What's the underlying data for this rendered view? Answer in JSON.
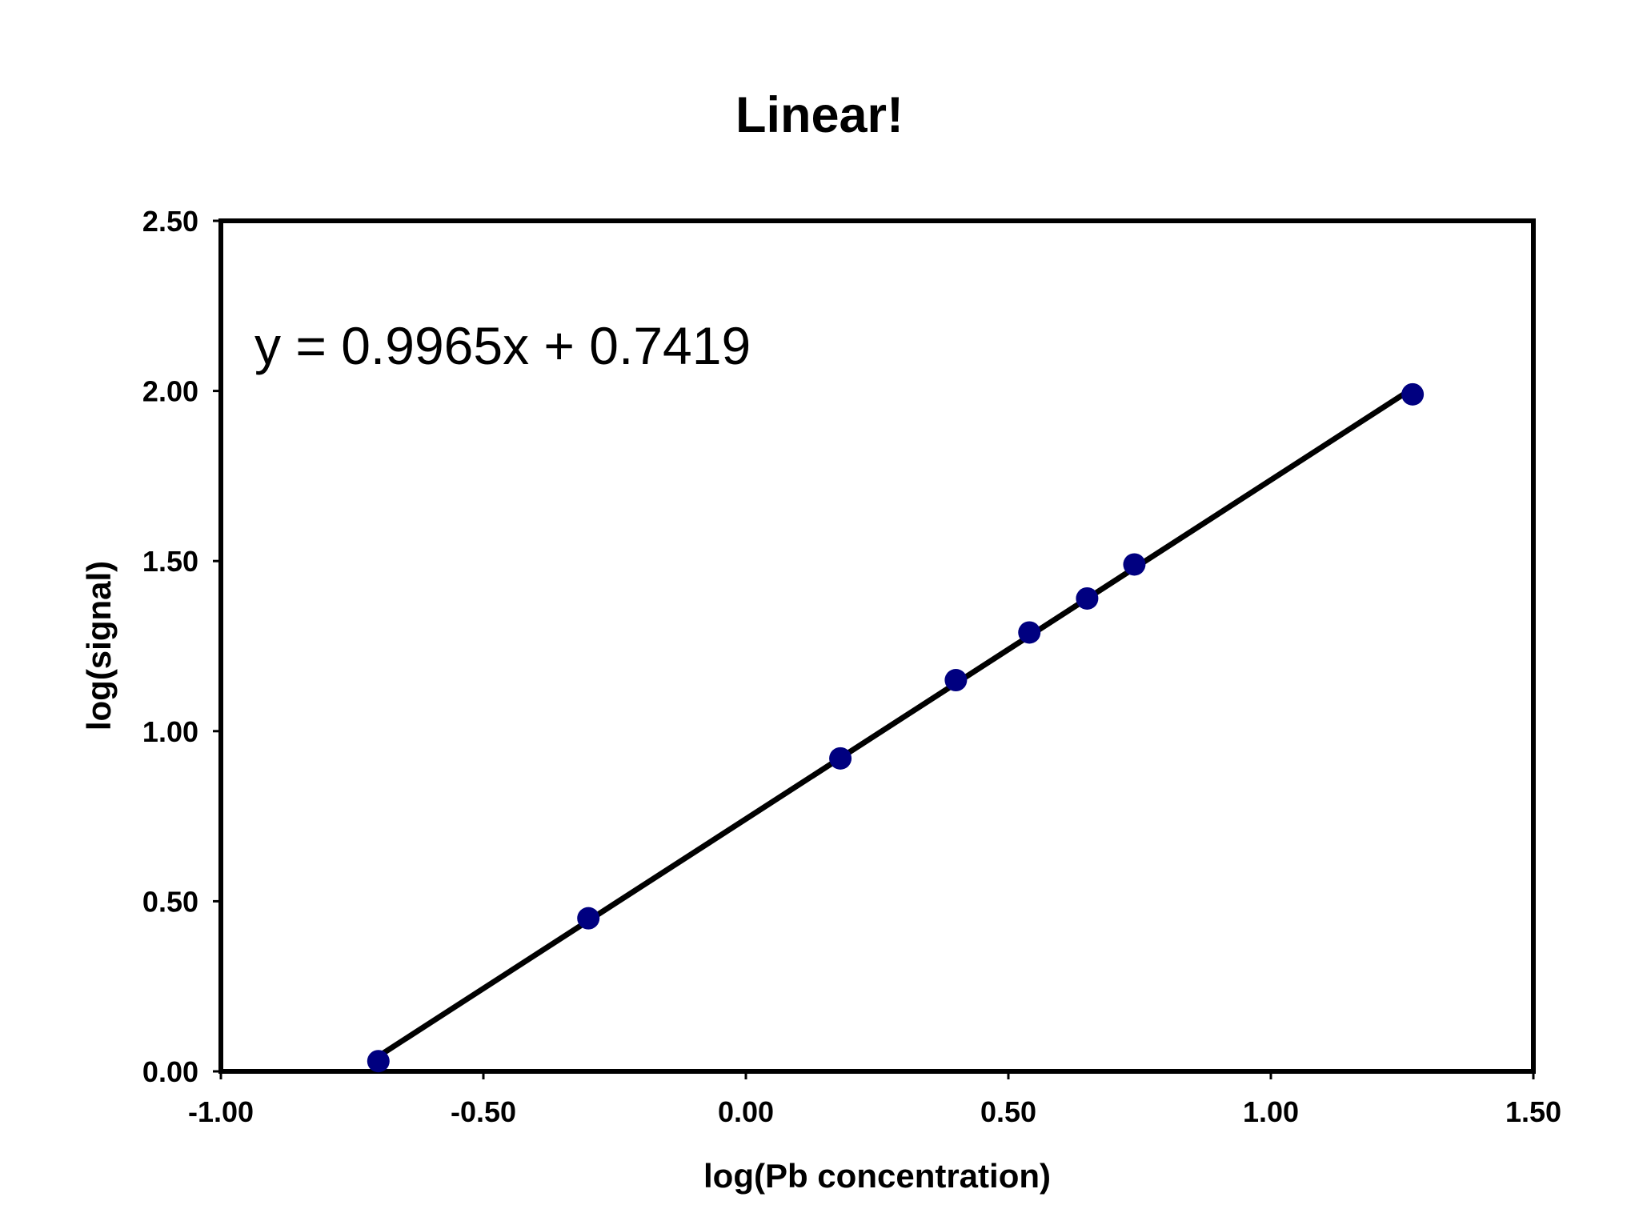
{
  "chart_data": {
    "type": "scatter",
    "title": "Linear!",
    "xlabel": "log(Pb concentration)",
    "ylabel": "log(signal)",
    "xlim": [
      -1.0,
      1.5
    ],
    "ylim": [
      0.0,
      2.5
    ],
    "x_ticks": [
      "-1.00",
      "-0.50",
      "0.00",
      "0.50",
      "1.00",
      "1.50"
    ],
    "y_ticks": [
      "0.00",
      "0.50",
      "1.00",
      "1.50",
      "2.00",
      "2.50"
    ],
    "grid": false,
    "series": [
      {
        "x": [
          -0.7,
          -0.3,
          0.18,
          0.4,
          0.54,
          0.65,
          0.74,
          1.27
        ],
        "y": [
          0.03,
          0.45,
          0.92,
          1.15,
          1.29,
          1.39,
          1.49,
          1.99
        ],
        "color": "#000080"
      }
    ],
    "trendline": {
      "slope": 0.9965,
      "intercept": 0.7419,
      "x_range": [
        -0.7,
        1.27
      ],
      "color": "#000000"
    },
    "annotation": "y = 0.9965x + 0.7419"
  }
}
